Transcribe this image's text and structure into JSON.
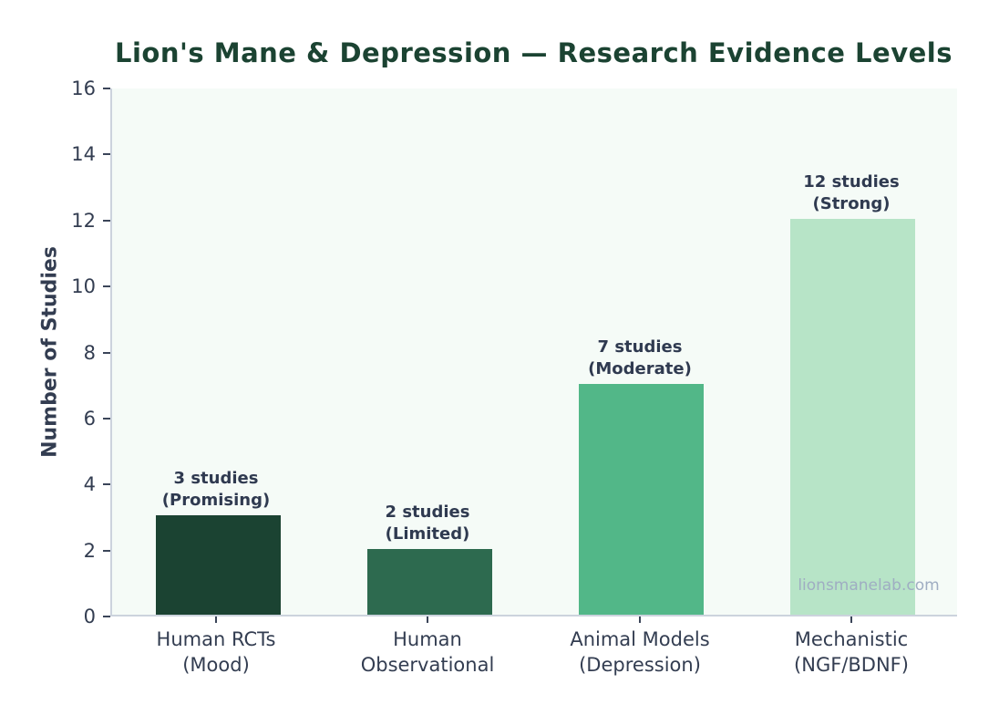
{
  "watermark": "lionsmanelab.com",
  "colors": {
    "title_text": "#1b4332",
    "axis_text": "#333d51",
    "annotation_text": "#2f3a50",
    "spine": "#ccd3dd",
    "tick_mark": "#3b4559",
    "plot_background": "#f5fbf7",
    "figure_background": "#ffffff",
    "watermark_text": "#9fadc2"
  },
  "chart_data": {
    "type": "bar",
    "title": "Lion's Mane & Depression — Research Evidence Levels",
    "xlabel": "",
    "ylabel": "Number of Studies",
    "ylim": [
      0,
      16
    ],
    "yticks": [
      0,
      2,
      4,
      6,
      8,
      10,
      12,
      14,
      16
    ],
    "grid": false,
    "legend": false,
    "categories": [
      "Human RCTs\n(Mood)",
      "Human\nObservational",
      "Animal Models\n(Depression)",
      "Mechanistic\n(NGF/BDNF)"
    ],
    "values": [
      3,
      2,
      7,
      12
    ],
    "bar_colors": [
      "#1b4332",
      "#2d6a4f",
      "#52b788",
      "#b7e4c7"
    ],
    "bar_labels": [
      "3 studies\n(Promising)",
      "2 studies\n(Limited)",
      "7 studies\n(Moderate)",
      "12 studies\n(Strong)"
    ]
  }
}
